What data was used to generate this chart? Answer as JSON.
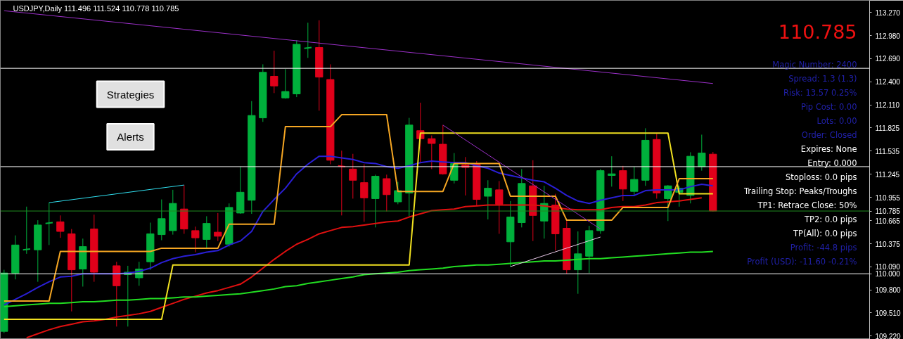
{
  "chart_data": {
    "type": "candlestick",
    "title": "USDJPY,Daily 111.496 111.524 110.778 110.785",
    "categories": [
      null,
      null,
      null,
      null,
      null,
      null,
      null,
      null,
      null,
      null,
      null,
      null,
      null,
      null,
      null,
      null,
      null,
      null,
      null,
      null,
      null,
      null,
      null,
      null,
      null,
      null,
      null,
      null,
      null,
      null,
      null,
      null,
      null,
      null,
      null,
      null,
      null,
      null,
      null,
      null,
      null,
      null,
      null,
      null,
      null,
      null,
      null,
      null,
      null,
      null,
      null,
      null,
      null,
      null,
      null,
      null,
      null,
      null,
      null,
      null,
      null,
      null,
      null,
      null
    ],
    "ohlc": [
      [
        109.28,
        110.05,
        109.26,
        110.01
      ],
      [
        110.01,
        110.48,
        109.93,
        110.36
      ],
      [
        110.3,
        110.84,
        110.25,
        110.31
      ],
      [
        110.3,
        110.67,
        109.9,
        110.61
      ],
      [
        110.63,
        110.89,
        110.36,
        110.64
      ],
      [
        110.65,
        110.73,
        110.45,
        110.53
      ],
      [
        110.5,
        110.56,
        109.53,
        110.05
      ],
      [
        110.06,
        110.44,
        109.84,
        110.34
      ],
      [
        110.56,
        110.74,
        109.9,
        110.02
      ],
      null,
      [
        110.1,
        110.15,
        109.34,
        109.85
      ],
      [
        109.99,
        110.1,
        109.34,
        110.02
      ],
      [
        109.95,
        110.15,
        109.85,
        110.06
      ],
      [
        110.15,
        110.64,
        110.05,
        110.5
      ],
      [
        110.49,
        110.93,
        110.42,
        110.69
      ],
      [
        110.54,
        111.05,
        110.49,
        110.88
      ],
      [
        110.81,
        111.11,
        110.5,
        110.56
      ],
      [
        110.54,
        110.59,
        110.27,
        110.45
      ],
      [
        110.43,
        110.72,
        110.31,
        110.63
      ],
      [
        110.52,
        110.76,
        110.41,
        110.47
      ],
      [
        110.37,
        110.88,
        110.34,
        110.83
      ],
      [
        110.76,
        111.34,
        110.75,
        111.02
      ],
      [
        110.92,
        112.16,
        110.75,
        111.98
      ],
      [
        111.95,
        112.62,
        111.9,
        112.52
      ],
      [
        112.47,
        112.79,
        112.26,
        112.35
      ],
      [
        112.2,
        112.56,
        112.19,
        112.28
      ],
      [
        112.25,
        112.92,
        112.21,
        112.87
      ],
      [
        112.82,
        113.14,
        112.7,
        112.83
      ],
      [
        112.83,
        113.17,
        112.04,
        112.46
      ],
      [
        112.43,
        112.62,
        111.37,
        111.42
      ],
      [
        111.35,
        111.54,
        110.73,
        111.34
      ],
      [
        111.31,
        111.5,
        110.94,
        111.17
      ],
      [
        111.14,
        111.37,
        110.65,
        110.95
      ],
      [
        110.94,
        111.24,
        110.58,
        111.22
      ],
      [
        111.19,
        111.24,
        110.78,
        110.99
      ],
      [
        110.9,
        111.15,
        110.87,
        111.04
      ],
      [
        111.01,
        111.95,
        110.72,
        111.86
      ],
      [
        111.79,
        112.14,
        111.39,
        111.69
      ],
      [
        111.69,
        111.73,
        111.31,
        111.63
      ],
      [
        111.62,
        111.86,
        111.24,
        111.25
      ],
      [
        111.17,
        111.51,
        111.13,
        111.38
      ],
      [
        111.36,
        111.46,
        110.98,
        111.33
      ],
      [
        111.37,
        111.41,
        110.85,
        110.93
      ],
      [
        110.97,
        111.17,
        110.68,
        111.07
      ],
      [
        111.05,
        111.16,
        110.5,
        110.87
      ],
      [
        110.4,
        110.91,
        110.09,
        110.71
      ],
      [
        110.64,
        111.31,
        110.58,
        111.13
      ],
      [
        111.1,
        111.42,
        110.41,
        110.73
      ],
      [
        110.66,
        111.1,
        110.44,
        110.88
      ],
      [
        110.86,
        111.0,
        110.29,
        110.5
      ],
      [
        110.57,
        110.66,
        110.0,
        110.05
      ],
      [
        110.05,
        110.53,
        109.75,
        110.25
      ],
      [
        110.22,
        110.6,
        110.01,
        110.54
      ],
      [
        110.54,
        111.31,
        110.5,
        111.29
      ],
      [
        111.23,
        111.47,
        111.09,
        111.25
      ],
      [
        111.29,
        111.35,
        110.91,
        111.06
      ],
      [
        111.03,
        111.34,
        110.97,
        111.18
      ],
      [
        111.17,
        111.82,
        111.1,
        111.67
      ],
      [
        111.68,
        111.75,
        110.94,
        111.01
      ],
      [
        110.94,
        111.11,
        110.66,
        111.1
      ],
      [
        111.02,
        111.1,
        110.84,
        111.07
      ],
      [
        110.98,
        111.52,
        110.88,
        111.47
      ],
      [
        111.34,
        111.74,
        111.29,
        111.51
      ],
      [
        111.496,
        111.524,
        110.778,
        110.785
      ]
    ],
    "colors": [
      "#00b03c",
      "#00b03c",
      "#00b03c",
      "#00b03c",
      "#00b03c",
      "#e0001a",
      "#e0001a",
      "#00b03c",
      "#e0001a",
      null,
      "#e0001a",
      "#00b03c",
      "#00b03c",
      "#00b03c",
      "#00b03c",
      "#00b03c",
      "#e0001a",
      "#e0001a",
      "#00b03c",
      "#e0001a",
      "#00b03c",
      "#00b03c",
      "#00b03c",
      "#00b03c",
      "#e0001a",
      "#00b03c",
      "#00b03c",
      "#00b03c",
      "#e0001a",
      "#e0001a",
      "#e0001a",
      "#e0001a",
      "#e0001a",
      "#00b03c",
      "#e0001a",
      "#00b03c",
      "#00b03c",
      "#e0001a",
      "#e0001a",
      "#e0001a",
      "#00b03c",
      "#e0001a",
      "#e0001a",
      "#00b03c",
      "#e0001a",
      "#00b03c",
      "#00b03c",
      "#e0001a",
      "#00b03c",
      "#e0001a",
      "#e0001a",
      "#00b03c",
      "#00b03c",
      "#00b03c",
      "#00b03c",
      "#e0001a",
      "#00b03c",
      "#00b03c",
      "#e0001a",
      "#00b03c",
      "#00b03c",
      "#00b03c",
      "#00b03c",
      "#e0001a"
    ],
    "series": [
      {
        "type": "line",
        "color": "#2a1fd6",
        "values": [
          109.61,
          109.68,
          109.75,
          109.83,
          109.9,
          109.96,
          109.97,
          110.0,
          110.0,
          110.0,
          110.0,
          110.01,
          110.03,
          110.07,
          110.14,
          110.19,
          110.22,
          110.24,
          110.27,
          110.29,
          110.36,
          110.41,
          110.53,
          110.78,
          110.93,
          111.07,
          111.25,
          111.37,
          111.47,
          111.47,
          111.45,
          111.43,
          111.39,
          111.38,
          111.34,
          111.32,
          111.35,
          111.39,
          111.41,
          111.4,
          111.39,
          111.39,
          111.35,
          111.32,
          111.26,
          111.23,
          111.2,
          111.17,
          111.15,
          111.07,
          110.98,
          110.91,
          110.88,
          110.92,
          110.95,
          110.98,
          110.98,
          111.04,
          111.05,
          111.05,
          111.05,
          111.09,
          111.12,
          111.1
        ]
      },
      {
        "type": "line",
        "color": "#e01010",
        "values": [
          null,
          null,
          109.2,
          109.25,
          109.3,
          109.34,
          109.37,
          109.4,
          109.41,
          109.43,
          109.46,
          109.48,
          109.5,
          109.53,
          109.58,
          109.63,
          109.68,
          109.72,
          109.76,
          109.79,
          109.83,
          109.87,
          109.96,
          110.07,
          110.18,
          110.28,
          110.37,
          110.43,
          110.5,
          110.54,
          110.58,
          110.59,
          110.61,
          110.63,
          110.65,
          110.66,
          110.71,
          110.75,
          110.79,
          110.8,
          110.81,
          110.84,
          110.85,
          110.86,
          110.86,
          110.86,
          110.86,
          110.86,
          110.85,
          110.83,
          110.81,
          110.8,
          110.8,
          110.8,
          110.83,
          110.84,
          110.84,
          110.86,
          110.89,
          110.9,
          110.91,
          110.93,
          110.95,
          null
        ]
      },
      {
        "type": "line",
        "color": "#22dd22",
        "values": [
          109.59,
          109.6,
          109.61,
          109.62,
          109.63,
          109.63,
          109.64,
          109.65,
          109.65,
          109.66,
          109.67,
          109.67,
          109.68,
          109.69,
          109.69,
          109.7,
          109.71,
          109.71,
          109.72,
          109.73,
          109.74,
          109.75,
          109.77,
          109.79,
          109.81,
          109.84,
          109.85,
          109.88,
          109.9,
          109.92,
          109.94,
          109.96,
          109.99,
          110.0,
          110.01,
          110.02,
          110.04,
          110.05,
          110.06,
          110.07,
          110.09,
          110.1,
          110.11,
          110.11,
          110.12,
          110.13,
          110.14,
          110.15,
          110.16,
          110.16,
          110.17,
          110.18,
          110.19,
          110.19,
          110.2,
          110.21,
          110.22,
          110.23,
          110.24,
          110.25,
          110.26,
          110.27,
          110.27,
          110.28
        ]
      },
      {
        "type": "line",
        "color": "#f0e020",
        "values": [
          109.43,
          109.43,
          109.43,
          109.43,
          109.43,
          109.43,
          109.43,
          109.43,
          109.43,
          109.43,
          109.43,
          109.43,
          109.43,
          109.43,
          109.43,
          110.11,
          110.11,
          110.11,
          110.11,
          110.11,
          110.11,
          110.11,
          110.11,
          110.11,
          110.11,
          110.11,
          110.11,
          110.11,
          110.11,
          110.11,
          110.11,
          110.11,
          110.11,
          110.11,
          110.11,
          110.11,
          110.11,
          111.76,
          111.76,
          111.76,
          111.76,
          111.76,
          111.76,
          111.76,
          111.76,
          111.76,
          111.76,
          111.76,
          111.76,
          111.76,
          111.76,
          111.76,
          111.76,
          111.76,
          111.76,
          111.76,
          111.76,
          111.76,
          111.76,
          111.76,
          111.0,
          111.0,
          111.0,
          111.0
        ]
      },
      {
        "type": "line",
        "color": "#f5a623",
        "values": [
          109.66,
          109.66,
          109.66,
          109.66,
          109.66,
          110.28,
          110.28,
          110.28,
          110.28,
          110.28,
          110.28,
          110.28,
          110.28,
          110.28,
          110.32,
          110.32,
          110.32,
          110.32,
          110.32,
          110.32,
          110.62,
          110.62,
          110.62,
          110.62,
          110.62,
          111.84,
          111.84,
          111.84,
          111.84,
          111.84,
          111.99,
          111.99,
          111.99,
          111.99,
          111.99,
          111.03,
          111.03,
          111.03,
          111.03,
          111.03,
          111.38,
          111.38,
          111.38,
          111.38,
          111.38,
          110.97,
          110.97,
          110.97,
          110.97,
          110.97,
          110.67,
          110.67,
          110.67,
          110.67,
          110.67,
          110.83,
          110.83,
          110.83,
          110.83,
          110.83,
          111.19,
          111.19,
          111.19,
          111.19
        ]
      },
      {
        "type": "line",
        "color": "#9b30c8",
        "values": [
          113.29,
          null,
          null,
          null,
          null,
          null,
          null,
          null,
          null,
          null,
          null,
          null,
          null,
          null,
          null,
          null,
          null,
          null,
          null,
          null,
          null,
          null,
          null,
          null,
          null,
          null,
          null,
          null,
          null,
          null,
          null,
          null,
          null,
          null,
          null,
          null,
          null,
          null,
          null,
          null,
          null,
          null,
          null,
          null,
          null,
          null,
          null,
          null,
          null,
          null,
          null,
          null,
          null,
          null,
          null,
          null,
          null,
          null,
          null,
          null,
          null,
          null,
          null,
          112.38
        ]
      },
      {
        "type": "line",
        "color": "#30e0f0",
        "values": [
          null,
          null,
          null,
          null,
          110.89,
          null,
          null,
          null,
          null,
          null,
          null,
          null,
          null,
          null,
          null,
          null,
          111.11,
          null,
          null,
          null,
          null,
          null,
          null,
          null,
          null,
          null,
          null,
          null,
          null,
          null,
          null,
          null,
          null,
          null,
          null,
          null,
          null,
          null,
          null,
          null,
          null,
          null,
          null,
          null,
          null,
          null,
          null,
          null,
          null,
          null,
          null,
          null,
          null,
          null,
          null,
          null,
          null,
          null,
          null,
          null,
          null,
          null,
          null,
          null
        ]
      },
      {
        "type": "line",
        "color": "#9b30c8",
        "values": [
          null,
          null,
          null,
          null,
          null,
          null,
          null,
          null,
          null,
          null,
          null,
          null,
          null,
          null,
          null,
          null,
          null,
          null,
          null,
          null,
          null,
          null,
          null,
          null,
          null,
          null,
          null,
          null,
          null,
          null,
          null,
          null,
          null,
          null,
          null,
          null,
          null,
          null,
          null,
          111.86,
          null,
          null,
          null,
          null,
          null,
          null,
          null,
          null,
          null,
          null,
          null,
          null,
          null,
          110.56,
          null,
          null,
          null,
          null,
          null,
          null,
          null,
          null,
          null,
          null
        ]
      },
      {
        "type": "line",
        "color": "#e8c8e8",
        "values": [
          null,
          null,
          null,
          null,
          null,
          null,
          null,
          null,
          null,
          null,
          null,
          null,
          null,
          null,
          null,
          null,
          null,
          null,
          null,
          null,
          null,
          null,
          null,
          null,
          null,
          null,
          null,
          null,
          null,
          null,
          null,
          null,
          null,
          null,
          null,
          null,
          null,
          null,
          null,
          null,
          null,
          null,
          null,
          null,
          null,
          110.09,
          null,
          null,
          null,
          null,
          null,
          null,
          null,
          110.46,
          null,
          null,
          null,
          null,
          null,
          null,
          null,
          null,
          null,
          null
        ]
      }
    ],
    "ylim": [
      109.18,
      113.42
    ],
    "yticks": [
      {
        "value": 113.27,
        "label": "113.270"
      },
      {
        "value": 112.98,
        "label": "112.980"
      },
      {
        "value": 112.69,
        "label": "112.690"
      },
      {
        "value": 112.4,
        "label": "112.400"
      },
      {
        "value": 112.11,
        "label": "112.110"
      },
      {
        "value": 111.825,
        "label": "111.825"
      },
      {
        "value": 111.535,
        "label": "111.535"
      },
      {
        "value": 111.245,
        "label": "111.245"
      },
      {
        "value": 110.955,
        "label": "110.955"
      },
      {
        "value": 110.665,
        "label": "110.665"
      },
      {
        "value": 110.375,
        "label": "110.375"
      },
      {
        "value": 110.09,
        "label": "110.090"
      },
      {
        "value": 109.8,
        "label": "109.800"
      },
      {
        "value": 109.51,
        "label": "109.510"
      },
      {
        "value": 109.22,
        "label": "109.220"
      }
    ],
    "tick_labels": "y",
    "ref_lines": [
      {
        "axis": "y",
        "value": 112.57,
        "color": "#ffffff"
      },
      {
        "axis": "y",
        "value": 111.34,
        "color": "#ffffff"
      },
      {
        "axis": "y",
        "value": 110.785,
        "label": "110.785",
        "color": "#1e8c1e"
      },
      {
        "axis": "y",
        "value": 110.0,
        "label": "110.000",
        "color": "#ffffff"
      }
    ],
    "annotations": [
      "110.785",
      "Magic Number: 2400",
      "Spread: 1.3 (1.3)",
      "Risk: 13.57 0.25%",
      "Pip Cost: 0.00",
      "Lots: 0.00",
      "Order: Closed",
      "Expires: None",
      "Entry: 0.000",
      "Stoploss: 0.0 pips",
      "Trailing Stop: Peaks/Troughs",
      "TP1: Retrace Close: 50%",
      "TP2: 0.0 pips",
      "TP(All): 0.0 pips",
      "Profit: -44.8 pips",
      "Profit (USD): -11.60 -0.21%",
      "Strategies",
      "Alerts"
    ],
    "grid": false
  }
}
